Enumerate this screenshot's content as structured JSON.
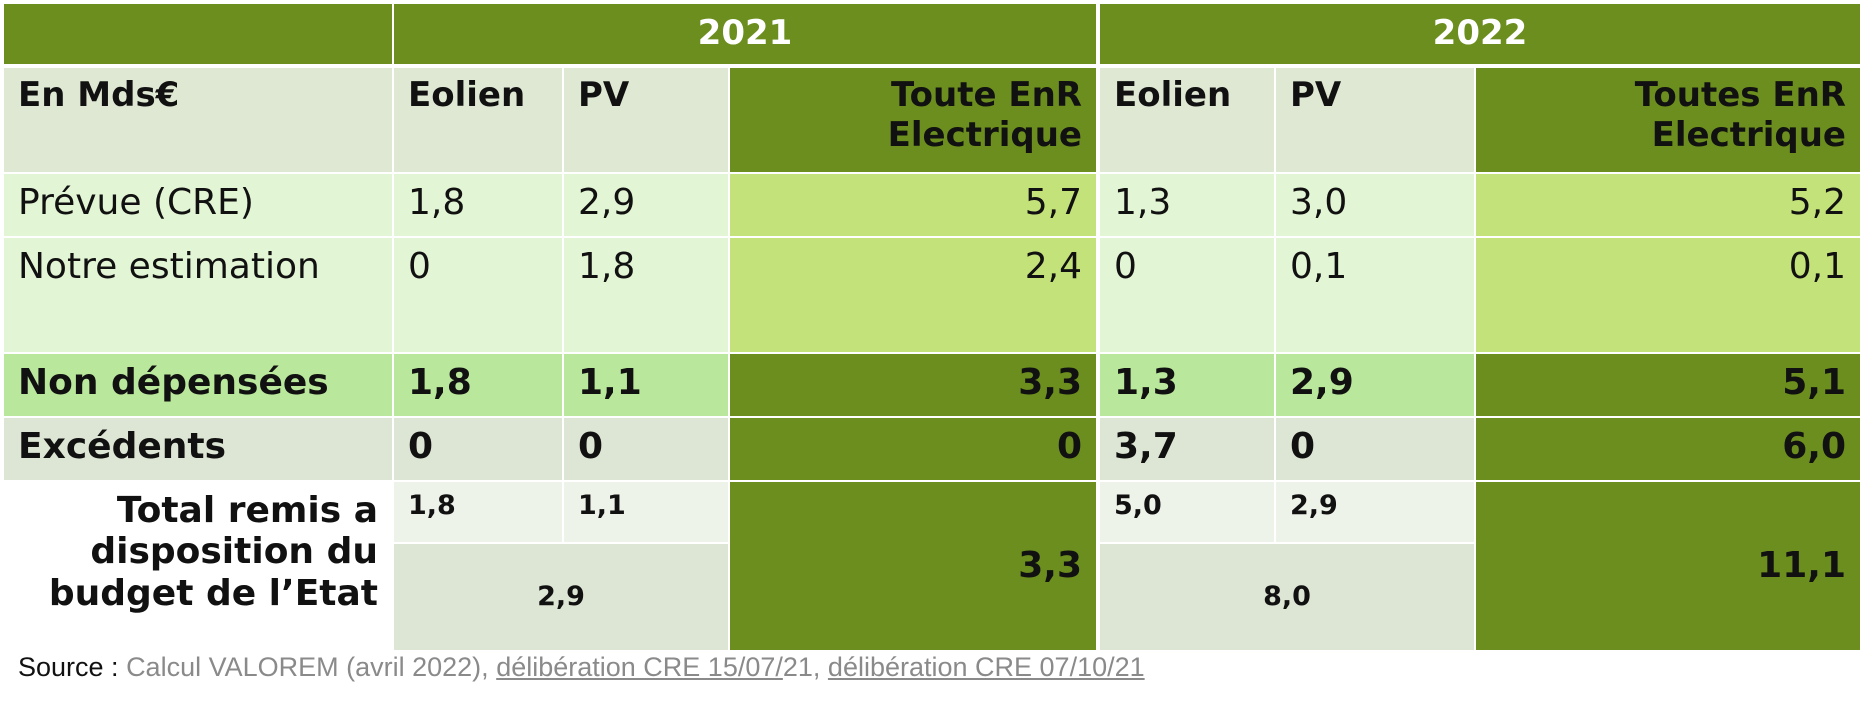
{
  "years": [
    "2021",
    "2022"
  ],
  "col_headers": {
    "row_label": "En Mds€",
    "eolien": "Eolien",
    "pv": "PV",
    "total_2021": "Toute EnR\nElectrique",
    "total_2022": "Toutes EnR\nElectrique"
  },
  "rows": [
    {
      "label": "Prévue (CRE)",
      "values": [
        "1,8",
        "2,9",
        "5,7",
        "1,3",
        "3,0",
        "5,2"
      ]
    },
    {
      "label": "Notre estimation",
      "values": [
        "0",
        "1,8",
        "2,4",
        "0",
        "0,1",
        "0,1"
      ]
    },
    {
      "label": "Non dépensées",
      "values": [
        "1,8",
        "1,1",
        "3,3",
        "1,3",
        "2,9",
        "5,1"
      ]
    },
    {
      "label": "Excédents",
      "values": [
        "0",
        "0",
        "0",
        "3,7",
        "0",
        "6,0"
      ]
    }
  ],
  "total_row": {
    "label": "Total remis a\ndisposition du\nbudget de l’Etat",
    "y2021": {
      "eolien": "1,8",
      "pv": "1,1",
      "combined": "2,9",
      "total": "3,3"
    },
    "y2022": {
      "eolien": "5,0",
      "pv": "2,9",
      "combined": "8,0",
      "total": "11,1"
    }
  },
  "source": {
    "label": "Source : ",
    "text1": "Calcul VALOREM (avril 2022), ",
    "link1": "délibération CRE 15/07/",
    "text2": "21, ",
    "link2": "délibération CRE 07/10/21"
  },
  "colors": {
    "dark_green": "#6b8e1e",
    "header_row": "#dfe8d3",
    "light_row": "#e2f5d4",
    "lime": "#c4e27a",
    "mid_green": "#b9e79b",
    "gray_green": "#dde6d4",
    "very_light": "#eef3ea"
  }
}
